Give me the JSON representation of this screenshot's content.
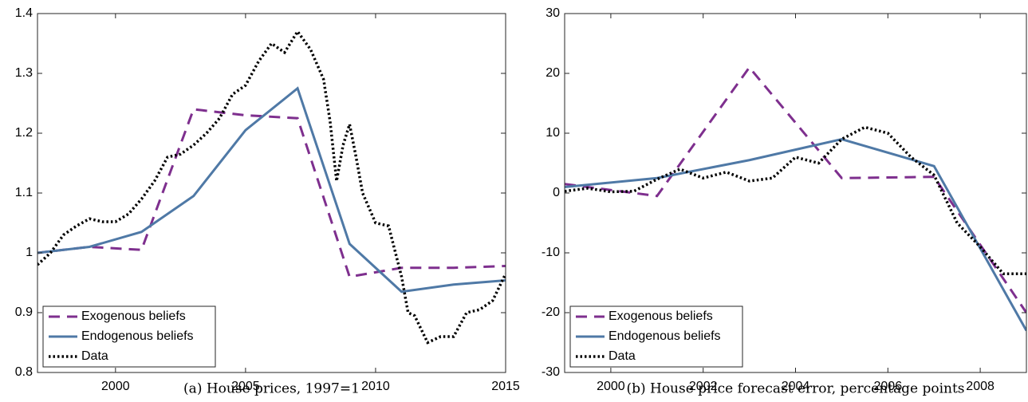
{
  "chart_data": [
    {
      "type": "line",
      "caption": "(a) House prices, 1997=1",
      "xlim": [
        1997,
        2015
      ],
      "xticks": [
        2000,
        2005,
        2010,
        2015
      ],
      "ylim": [
        0.8,
        1.4
      ],
      "yticks": [
        {
          "value": 0.8,
          "label": "0.8"
        },
        {
          "value": 0.9,
          "label": "0.9"
        },
        1,
        {
          "value": 1.1,
          "label": "1.1"
        },
        {
          "value": 1.2,
          "label": "1.2"
        },
        {
          "value": 1.3,
          "label": "1.3"
        },
        {
          "value": 1.4,
          "label": "1.4"
        }
      ],
      "legend": "lower left",
      "series": [
        {
          "name": "Exogenous beliefs",
          "color": "#7e2f8e",
          "style": "dashed",
          "x": [
            1997,
            1999,
            2001,
            2003,
            2005,
            2007,
            2009,
            2011,
            2013,
            2015
          ],
          "values": [
            1.0,
            1.01,
            1.005,
            1.24,
            1.23,
            1.225,
            0.96,
            0.975,
            0.975,
            0.978
          ]
        },
        {
          "name": "Endogenous beliefs",
          "color": "#4f79a6",
          "style": "solid",
          "x": [
            1997,
            1999,
            2001,
            2003,
            2005,
            2007,
            2009,
            2011,
            2013,
            2015
          ],
          "values": [
            1.0,
            1.01,
            1.035,
            1.095,
            1.205,
            1.275,
            1.015,
            0.935,
            0.947,
            0.954
          ]
        },
        {
          "name": "Data",
          "color": "#000000",
          "style": "dotted",
          "x": [
            1997,
            1997.5,
            1998,
            1998.5,
            1999,
            1999.5,
            2000,
            2000.5,
            2001,
            2001.5,
            2002,
            2002.5,
            2003,
            2003.5,
            2004,
            2004.5,
            2005,
            2005.5,
            2006,
            2006.5,
            2007,
            2007.5,
            2008,
            2008.25,
            2008.5,
            2008.75,
            2009,
            2009.25,
            2009.5,
            2010,
            2010.5,
            2011,
            2011.25,
            2011.5,
            2012,
            2012.5,
            2013,
            2013.5,
            2014,
            2014.5,
            2015
          ],
          "values": [
            0.98,
            1.0,
            1.03,
            1.045,
            1.057,
            1.052,
            1.052,
            1.065,
            1.09,
            1.12,
            1.16,
            1.165,
            1.18,
            1.2,
            1.225,
            1.265,
            1.28,
            1.32,
            1.35,
            1.335,
            1.37,
            1.34,
            1.29,
            1.22,
            1.12,
            1.18,
            1.215,
            1.16,
            1.1,
            1.05,
            1.045,
            0.96,
            0.9,
            0.895,
            0.85,
            0.86,
            0.86,
            0.9,
            0.905,
            0.92,
            0.965
          ]
        }
      ]
    },
    {
      "type": "line",
      "caption": "(b) House price forecast error, percentage points",
      "xlim": [
        1999,
        2009
      ],
      "xticks": [
        2000,
        2002,
        2004,
        2006,
        2008
      ],
      "ylim": [
        -30,
        30
      ],
      "yticks": [
        -30,
        -20,
        -10,
        0,
        10,
        20,
        30
      ],
      "legend": "lower left",
      "series": [
        {
          "name": "Exogenous beliefs",
          "color": "#7e2f8e",
          "style": "dashed",
          "x": [
            1999,
            2001,
            2003,
            2005,
            2007,
            2009
          ],
          "values": [
            1.5,
            -0.5,
            21,
            2.5,
            2.7,
            -20
          ]
        },
        {
          "name": "Endogenous beliefs",
          "color": "#4f79a6",
          "style": "solid",
          "x": [
            1999,
            2001,
            2003,
            2005,
            2007,
            2009
          ],
          "values": [
            1,
            2.5,
            5.5,
            9,
            4.5,
            -23
          ]
        },
        {
          "name": "Data",
          "color": "#000000",
          "style": "dotted",
          "x": [
            1999,
            1999.5,
            2000,
            2000.5,
            2001,
            2001.5,
            2002,
            2002.5,
            2003,
            2003.5,
            2004,
            2004.5,
            2005,
            2005.5,
            2006,
            2006.5,
            2007,
            2007.5,
            2008,
            2008.5,
            2009
          ],
          "values": [
            0.3,
            0.8,
            0.2,
            0.3,
            2.3,
            4,
            2.5,
            3.5,
            2,
            2.5,
            6,
            5,
            9,
            11,
            10,
            6,
            3,
            -5,
            -9,
            -13.5,
            -13.5
          ]
        }
      ]
    }
  ]
}
